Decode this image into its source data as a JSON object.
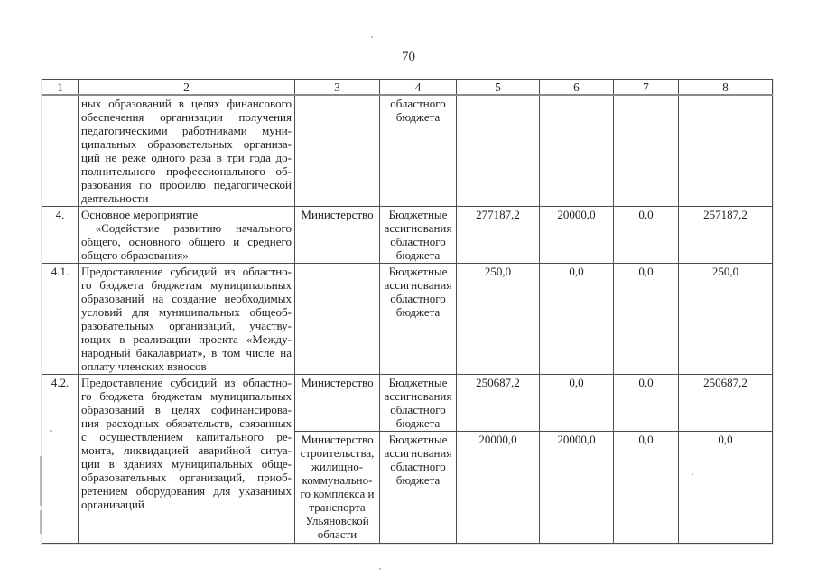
{
  "page": {
    "number": "70"
  },
  "table": {
    "headers": [
      "1",
      "2",
      "3",
      "4",
      "5",
      "6",
      "7",
      "8"
    ],
    "rows": [
      {
        "num": "",
        "activity": "ных образований в целях финансового\nобеспечения организации получения\nпедагогическими работниками муни-\nципальных образовательных организа-\nций не реже одного раза в три года до-\nполнительного профессионального об-\nразования по профилю педагогической\nдеятельности",
        "executor": "",
        "source": "областного\nбюджета",
        "amounts": [
          "",
          "",
          "",
          ""
        ]
      },
      {
        "num": "4.",
        "activity": "Основное мероприятие\n «Содействие развитию начального\nобщего, основного общего и среднего\nобщего образования»",
        "executor": "Министерство",
        "source": "Бюджетные\nассигнования\nобластного\nбюджета",
        "amounts": [
          "277187,2",
          "20000,0",
          "0,0",
          "257187,2"
        ]
      },
      {
        "num": "4.1.",
        "activity": "Предоставление субсидий из областно-\nго бюджета бюджетам муниципальных\nобразований на создание необходимых\nусловий для муниципальных общеоб-\nразовательных организаций, участву-\nющих в реализации проекта «Между-\nнародный бакалавриат», в том числе на\nоплату членских взносов",
        "executor": "",
        "source": "Бюджетные\nассигнования\nобластного\nбюджета",
        "amounts": [
          "250,0",
          "0,0",
          "0,0",
          "250,0"
        ]
      },
      {
        "num": "4.2.",
        "activity": "Предоставление субсидий из областно-\nго бюджета бюджетам муниципальных\nобразований в целях софинансирова-\nния расходных обязательств, связанных\nс осуществлением капитального ре-\nмонта, ликвидацией аварийной ситуа-\nции в зданиях муниципальных обще-\nобразовательных организаций, приоб-\nретением оборудования для указанных\nорганизаций",
        "subrows": [
          {
            "executor": "Министерство",
            "source": "Бюджетные\nассигнования\nобластного\nбюджета",
            "amounts": [
              "250687,2",
              "0,0",
              "0,0",
              "250687,2"
            ]
          },
          {
            "executor": "Министерство\nстроительства,\nжилищно-\nкоммунально-\nго комплекса и\nтранспорта\nУльяновской\nобласти",
            "source": "Бюджетные\nассигнования\nобластного\nбюджета",
            "amounts": [
              "20000,0",
              "20000,0",
              "0,0",
              "0,0"
            ]
          }
        ]
      }
    ]
  }
}
